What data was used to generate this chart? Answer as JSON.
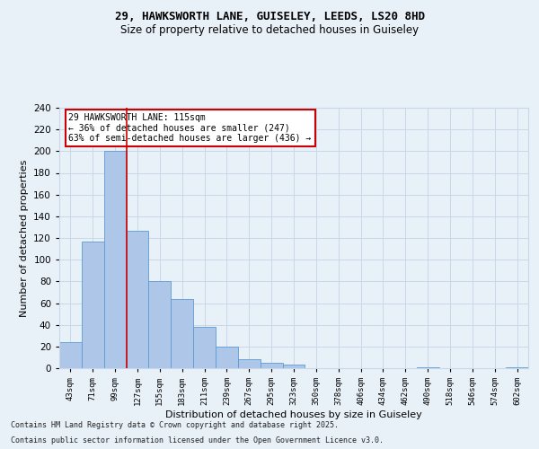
{
  "title1": "29, HAWKSWORTH LANE, GUISELEY, LEEDS, LS20 8HD",
  "title2": "Size of property relative to detached houses in Guiseley",
  "xlabel": "Distribution of detached houses by size in Guiseley",
  "ylabel": "Number of detached properties",
  "categories": [
    "43sqm",
    "71sqm",
    "99sqm",
    "127sqm",
    "155sqm",
    "183sqm",
    "211sqm",
    "239sqm",
    "267sqm",
    "295sqm",
    "323sqm",
    "350sqm",
    "378sqm",
    "406sqm",
    "434sqm",
    "462sqm",
    "490sqm",
    "518sqm",
    "546sqm",
    "574sqm",
    "602sqm"
  ],
  "values": [
    24,
    117,
    200,
    127,
    80,
    64,
    38,
    20,
    8,
    5,
    3,
    0,
    0,
    0,
    0,
    0,
    1,
    0,
    0,
    0,
    1
  ],
  "bar_color": "#aec6e8",
  "bar_edge_color": "#5b9bd5",
  "annotation_line1": "29 HAWKSWORTH LANE: 115sqm",
  "annotation_line2": "← 36% of detached houses are smaller (247)",
  "annotation_line3": "63% of semi-detached houses are larger (436) →",
  "vline_bin": 2,
  "annotation_box_color": "#ffffff",
  "annotation_box_edge": "#cc0000",
  "vline_color": "#cc0000",
  "grid_color": "#c8d8e8",
  "bg_color": "#e8f0f8",
  "footer1": "Contains HM Land Registry data © Crown copyright and database right 2025.",
  "footer2": "Contains public sector information licensed under the Open Government Licence v3.0.",
  "ylim": [
    0,
    240
  ],
  "yticks": [
    0,
    20,
    40,
    60,
    80,
    100,
    120,
    140,
    160,
    180,
    200,
    220,
    240
  ]
}
